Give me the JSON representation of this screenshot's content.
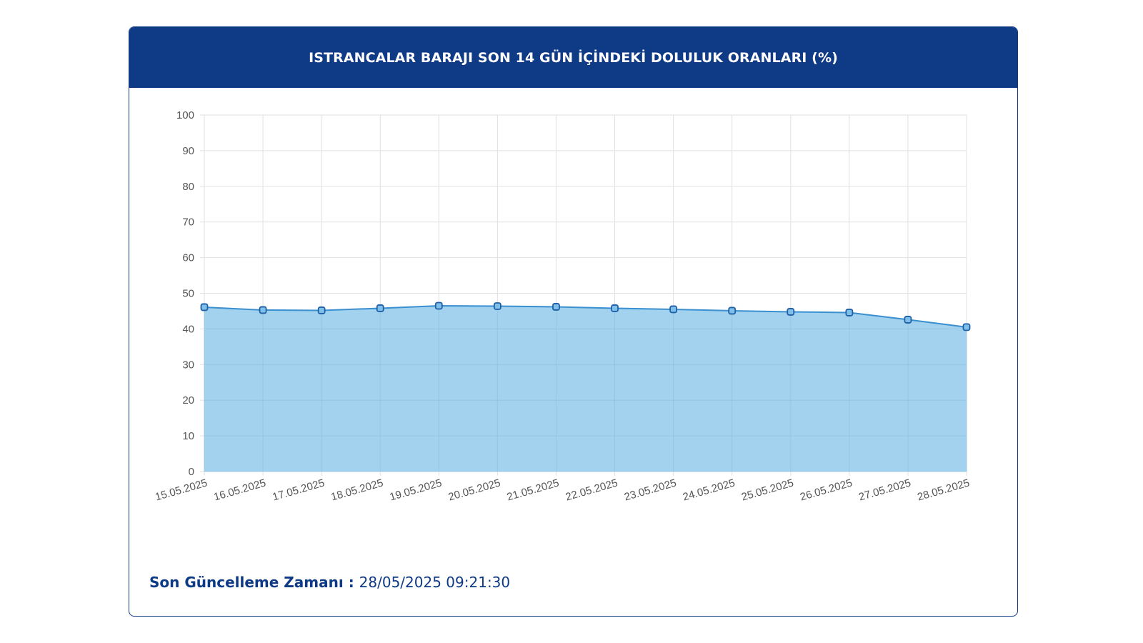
{
  "title": "ISTRANCALAR BARAJI SON 14 GÜN İÇİNDEKİ DOLULUK ORANLARI (%)",
  "footer": {
    "label": "Son Güncelleme Zamanı",
    "separator": " : ",
    "value": "28/05/2025 09:21:30"
  },
  "colors": {
    "header": "#0f3a85",
    "line": "#3a8fd1",
    "fill": "#9dd0ec",
    "marker_fill": "#7fc0e8",
    "marker_stroke": "#1f5fa8",
    "grid": "#e1e1e1",
    "tick_text": "#555555"
  },
  "chart_data": {
    "type": "area",
    "categories": [
      "15.05.2025",
      "16.05.2025",
      "17.05.2025",
      "18.05.2025",
      "19.05.2025",
      "20.05.2025",
      "21.05.2025",
      "22.05.2025",
      "23.05.2025",
      "24.05.2025",
      "25.05.2025",
      "26.05.2025",
      "27.05.2025",
      "28.05.2025"
    ],
    "series": [
      {
        "values": [
          46.1,
          45.3,
          45.2,
          45.8,
          46.5,
          46.4,
          46.2,
          45.8,
          45.5,
          45.1,
          44.8,
          44.6,
          42.6,
          40.5
        ]
      }
    ],
    "ylim": [
      0,
      100
    ],
    "yticks": [
      0,
      10,
      20,
      30,
      40,
      50,
      60,
      70,
      80,
      90,
      100
    ],
    "grid": true,
    "legend": "none"
  }
}
